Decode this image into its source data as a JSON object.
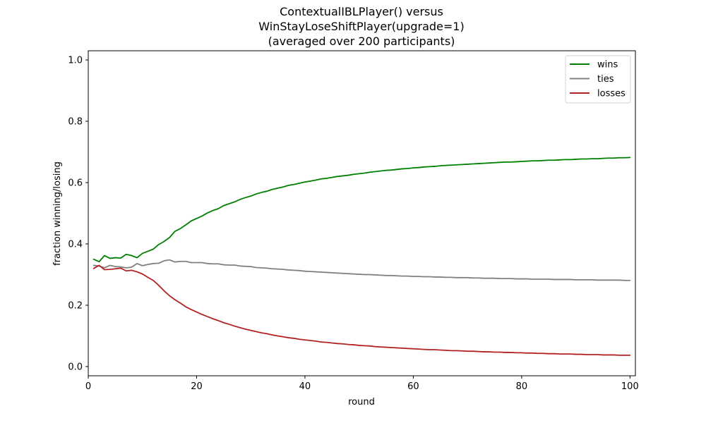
{
  "chart_data": {
    "type": "line",
    "title_lines": [
      "ContextualIBLPlayer() versus",
      "WinStayLoseShiftPlayer(upgrade=1)",
      "(averaged over 200 participants)"
    ],
    "xlabel": "round",
    "ylabel": "fraction winning/losing",
    "xlim": [
      0,
      101
    ],
    "ylim": [
      -0.03,
      1.03
    ],
    "xticks": [
      0,
      20,
      40,
      60,
      80,
      100
    ],
    "yticks": [
      0.0,
      0.2,
      0.4,
      0.6,
      0.8,
      1.0
    ],
    "xtick_labels": [
      "0",
      "20",
      "40",
      "60",
      "80",
      "100"
    ],
    "ytick_labels": [
      "0.0",
      "0.2",
      "0.4",
      "0.6",
      "0.8",
      "1.0"
    ],
    "grid": false,
    "legend_position": "top-right",
    "x": [
      1,
      2,
      3,
      4,
      5,
      6,
      7,
      8,
      9,
      10,
      11,
      12,
      13,
      14,
      15,
      16,
      17,
      18,
      19,
      20,
      21,
      22,
      23,
      24,
      25,
      26,
      27,
      28,
      29,
      30,
      31,
      32,
      33,
      34,
      35,
      36,
      37,
      38,
      39,
      40,
      41,
      42,
      43,
      44,
      45,
      46,
      47,
      48,
      49,
      50,
      51,
      52,
      53,
      54,
      55,
      56,
      57,
      58,
      59,
      60,
      61,
      62,
      63,
      64,
      65,
      66,
      67,
      68,
      69,
      70,
      71,
      72,
      73,
      74,
      75,
      76,
      77,
      78,
      79,
      80,
      81,
      82,
      83,
      84,
      85,
      86,
      87,
      88,
      89,
      90,
      91,
      92,
      93,
      94,
      95,
      96,
      97,
      98,
      99,
      100
    ],
    "series": [
      {
        "name": "wins",
        "color": "#008000",
        "values": [
          0.35,
          0.342,
          0.362,
          0.353,
          0.355,
          0.354,
          0.366,
          0.362,
          0.355,
          0.369,
          0.376,
          0.383,
          0.398,
          0.408,
          0.421,
          0.441,
          0.45,
          0.462,
          0.475,
          0.483,
          0.491,
          0.501,
          0.509,
          0.515,
          0.525,
          0.531,
          0.537,
          0.545,
          0.551,
          0.556,
          0.563,
          0.568,
          0.572,
          0.578,
          0.582,
          0.586,
          0.591,
          0.594,
          0.598,
          0.602,
          0.605,
          0.608,
          0.612,
          0.614,
          0.617,
          0.62,
          0.622,
          0.624,
          0.627,
          0.629,
          0.631,
          0.634,
          0.636,
          0.638,
          0.64,
          0.641,
          0.643,
          0.645,
          0.646,
          0.648,
          0.649,
          0.651,
          0.652,
          0.653,
          0.655,
          0.656,
          0.657,
          0.658,
          0.659,
          0.66,
          0.661,
          0.662,
          0.663,
          0.664,
          0.665,
          0.666,
          0.667,
          0.667,
          0.668,
          0.669,
          0.67,
          0.671,
          0.671,
          0.672,
          0.673,
          0.673,
          0.674,
          0.675,
          0.675,
          0.676,
          0.677,
          0.677,
          0.678,
          0.678,
          0.679,
          0.68,
          0.68,
          0.681,
          0.681,
          0.682
        ]
      },
      {
        "name": "ties",
        "color": "#808080",
        "values": [
          0.33,
          0.328,
          0.322,
          0.33,
          0.326,
          0.325,
          0.322,
          0.324,
          0.336,
          0.329,
          0.333,
          0.336,
          0.337,
          0.345,
          0.348,
          0.341,
          0.343,
          0.343,
          0.339,
          0.339,
          0.339,
          0.336,
          0.335,
          0.335,
          0.332,
          0.331,
          0.331,
          0.328,
          0.327,
          0.326,
          0.323,
          0.322,
          0.321,
          0.319,
          0.318,
          0.317,
          0.315,
          0.314,
          0.313,
          0.311,
          0.31,
          0.309,
          0.308,
          0.307,
          0.306,
          0.305,
          0.304,
          0.303,
          0.302,
          0.301,
          0.3,
          0.3,
          0.299,
          0.298,
          0.297,
          0.297,
          0.296,
          0.295,
          0.295,
          0.294,
          0.294,
          0.293,
          0.293,
          0.292,
          0.292,
          0.291,
          0.291,
          0.29,
          0.29,
          0.29,
          0.289,
          0.289,
          0.288,
          0.288,
          0.288,
          0.287,
          0.287,
          0.287,
          0.286,
          0.286,
          0.286,
          0.285,
          0.285,
          0.285,
          0.285,
          0.284,
          0.284,
          0.284,
          0.284,
          0.283,
          0.283,
          0.283,
          0.283,
          0.282,
          0.282,
          0.282,
          0.282,
          0.282,
          0.281,
          0.281
        ]
      },
      {
        "name": "losses",
        "color": "#b22222",
        "values": [
          0.32,
          0.33,
          0.316,
          0.317,
          0.319,
          0.321,
          0.312,
          0.314,
          0.309,
          0.302,
          0.291,
          0.281,
          0.265,
          0.247,
          0.231,
          0.218,
          0.207,
          0.195,
          0.186,
          0.178,
          0.17,
          0.163,
          0.156,
          0.15,
          0.143,
          0.138,
          0.132,
          0.127,
          0.122,
          0.118,
          0.114,
          0.11,
          0.107,
          0.103,
          0.1,
          0.097,
          0.094,
          0.092,
          0.089,
          0.087,
          0.085,
          0.083,
          0.08,
          0.079,
          0.077,
          0.075,
          0.074,
          0.072,
          0.071,
          0.069,
          0.068,
          0.067,
          0.065,
          0.064,
          0.063,
          0.062,
          0.061,
          0.06,
          0.059,
          0.058,
          0.057,
          0.056,
          0.055,
          0.055,
          0.054,
          0.053,
          0.052,
          0.052,
          0.051,
          0.05,
          0.05,
          0.049,
          0.048,
          0.048,
          0.047,
          0.047,
          0.046,
          0.046,
          0.045,
          0.045,
          0.044,
          0.044,
          0.043,
          0.043,
          0.042,
          0.042,
          0.041,
          0.041,
          0.041,
          0.04,
          0.04,
          0.039,
          0.039,
          0.039,
          0.038,
          0.038,
          0.038,
          0.037,
          0.037,
          0.037
        ]
      }
    ]
  }
}
